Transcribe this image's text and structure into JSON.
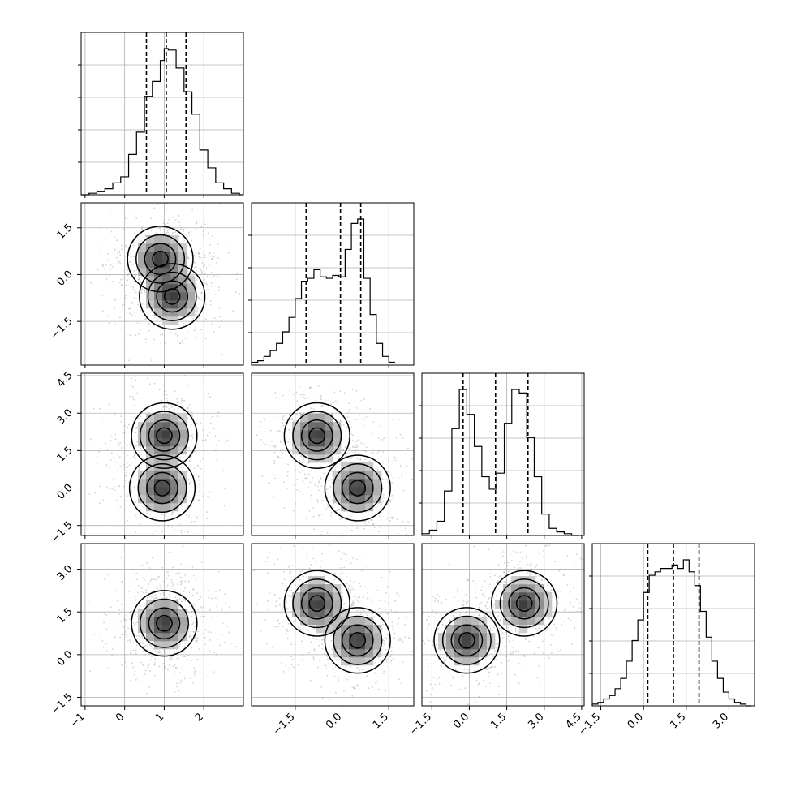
{
  "chart_data": {
    "type": "corner",
    "parameters": 4,
    "title": "",
    "grid": true,
    "quantiles": [
      0.16,
      0.5,
      0.84
    ],
    "colors": {
      "line": "#000000",
      "grid": "#b0b0b0",
      "points": "#7f7f7f",
      "density_dark": "#1a1a1a"
    },
    "axes_ranges": [
      [
        -1.1,
        3.0
      ],
      [
        -2.9,
        2.3
      ],
      [
        -1.9,
        4.6
      ],
      [
        -1.8,
        3.9
      ]
    ],
    "ticks": {
      "p0_bottom": [
        "−1",
        "0",
        "1",
        "2"
      ],
      "p1_left": [
        "−1.5",
        "0.0",
        "1.5"
      ],
      "p1_bottom": [
        "−1.5",
        "0.0",
        "1.5"
      ],
      "p2_left": [
        "−1.5",
        "0.0",
        "1.5",
        "3.0",
        "4.5"
      ],
      "p2_bottom": [
        "−1.5",
        "0.0",
        "1.5",
        "3.0",
        "4.5"
      ],
      "p3_left": [
        "−1.5",
        "0.0",
        "1.5",
        "3.0"
      ],
      "p3_bottom": [
        "−1.5",
        "0.0",
        "1.5",
        "3.0"
      ]
    },
    "tick_values": {
      "p0": [
        -1,
        0,
        1,
        2
      ],
      "p1": [
        -1.5,
        0.0,
        1.5
      ],
      "p2": [
        -1.5,
        0.0,
        1.5,
        3.0,
        4.5
      ],
      "p3": [
        -1.5,
        0.0,
        1.5,
        3.0
      ]
    },
    "marginals": [
      {
        "param": 0,
        "bin_edges": [
          -1.1,
          -0.9,
          -0.7,
          -0.5,
          -0.3,
          -0.1,
          0.1,
          0.3,
          0.5,
          0.7,
          0.9,
          1.0,
          1.1,
          1.3,
          1.5,
          1.7,
          1.9,
          2.1,
          2.3,
          2.5,
          2.7,
          2.9,
          3.0
        ],
        "counts": [
          0,
          1,
          2,
          4,
          8,
          12,
          27,
          42,
          66,
          76,
          90,
          98,
          97,
          85,
          69,
          54,
          30,
          18,
          8,
          4,
          1,
          0
        ],
        "quantile_values": [
          0.55,
          1.05,
          1.55
        ]
      },
      {
        "param": 1,
        "bin_edges": [
          -2.9,
          -2.7,
          -2.5,
          -2.3,
          -2.1,
          -1.9,
          -1.7,
          -1.5,
          -1.3,
          -1.1,
          -0.9,
          -0.7,
          -0.5,
          -0.3,
          -0.1,
          0.1,
          0.3,
          0.5,
          0.7,
          0.9,
          1.1,
          1.3,
          1.5,
          1.7
        ],
        "counts": [
          2,
          3,
          6,
          10,
          15,
          23,
          33,
          46,
          58,
          60,
          66,
          61,
          60,
          62,
          61,
          80,
          98,
          101,
          60,
          35,
          15,
          6,
          2
        ],
        "quantile_values": [
          -1.15,
          -0.05,
          0.6
        ]
      },
      {
        "param": 2,
        "bin_edges": [
          -1.9,
          -1.6,
          -1.3,
          -1.0,
          -0.7,
          -0.4,
          -0.1,
          0.2,
          0.5,
          0.8,
          1.1,
          1.4,
          1.7,
          2.0,
          2.3,
          2.6,
          2.9,
          3.2,
          3.5,
          3.8,
          4.1,
          4.4
        ],
        "counts": [
          1,
          3,
          8,
          25,
          60,
          82,
          68,
          50,
          33,
          26,
          35,
          63,
          82,
          80,
          55,
          33,
          12,
          4,
          2,
          1,
          0
        ],
        "quantile_values": [
          -0.25,
          1.05,
          2.35
        ]
      },
      {
        "param": 3,
        "bin_edges": [
          -1.8,
          -1.6,
          -1.4,
          -1.2,
          -1.0,
          -0.8,
          -0.6,
          -0.4,
          -0.2,
          0.0,
          0.2,
          0.4,
          0.6,
          0.8,
          1.0,
          1.2,
          1.4,
          1.6,
          1.8,
          2.0,
          2.2,
          2.4,
          2.6,
          2.8,
          3.0,
          3.2,
          3.4,
          3.6,
          3.8
        ],
        "counts": [
          1,
          2,
          4,
          6,
          10,
          16,
          26,
          38,
          50,
          66,
          76,
          78,
          80,
          80,
          82,
          80,
          85,
          78,
          70,
          55,
          40,
          26,
          16,
          8,
          4,
          2,
          1,
          0
        ],
        "quantile_values": [
          0.15,
          1.05,
          1.95
        ]
      }
    ],
    "joint_peaks": [
      {
        "row": 1,
        "col": 0,
        "modes": [
          [
            0.9,
            0.5
          ],
          [
            1.2,
            -0.7
          ]
        ]
      },
      {
        "row": 2,
        "col": 0,
        "modes": [
          [
            1.0,
            2.1
          ],
          [
            0.95,
            0.0
          ]
        ]
      },
      {
        "row": 2,
        "col": 1,
        "modes": [
          [
            -0.8,
            2.1
          ],
          [
            0.5,
            0.0
          ]
        ]
      },
      {
        "row": 3,
        "col": 0,
        "modes": [
          [
            1.0,
            1.1
          ]
        ]
      },
      {
        "row": 3,
        "col": 1,
        "modes": [
          [
            -0.8,
            1.8
          ],
          [
            0.5,
            0.5
          ]
        ]
      },
      {
        "row": 3,
        "col": 2,
        "modes": [
          [
            -0.1,
            0.5
          ],
          [
            2.2,
            1.8
          ]
        ]
      }
    ]
  }
}
